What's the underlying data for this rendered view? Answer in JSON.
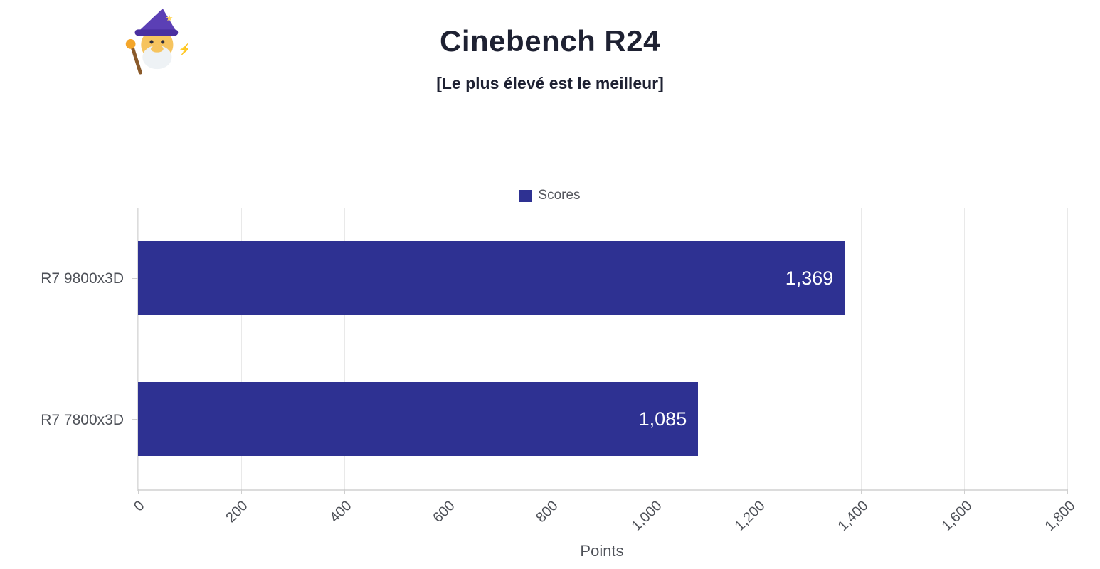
{
  "icons": {
    "logo": "wizard-icon"
  },
  "colors": {
    "bar": "#2e3192",
    "title_text": "#1e2132",
    "axis_text": "#4e5158",
    "grid": "#e9e9e9"
  },
  "chart_data": {
    "type": "bar",
    "orientation": "horizontal",
    "title": "Cinebench R24",
    "subtitle": "[Le plus élevé est le meilleur]",
    "series_name": "Scores",
    "categories": [
      "R7 9800x3D",
      "R7 7800x3D"
    ],
    "values": [
      1369,
      1085
    ],
    "value_labels": [
      "1,369",
      "1,085"
    ],
    "xlabel": "Points",
    "xlim": [
      0,
      1800
    ],
    "xticks": [
      0,
      200,
      400,
      600,
      800,
      1000,
      1200,
      1400,
      1600,
      1800
    ],
    "xtick_labels": [
      "0",
      "200",
      "400",
      "600",
      "800",
      "1,000",
      "1,200",
      "1,400",
      "1,600",
      "1,800"
    ],
    "grid": true,
    "legend_position": "top",
    "bar_color": "#2e3192"
  }
}
